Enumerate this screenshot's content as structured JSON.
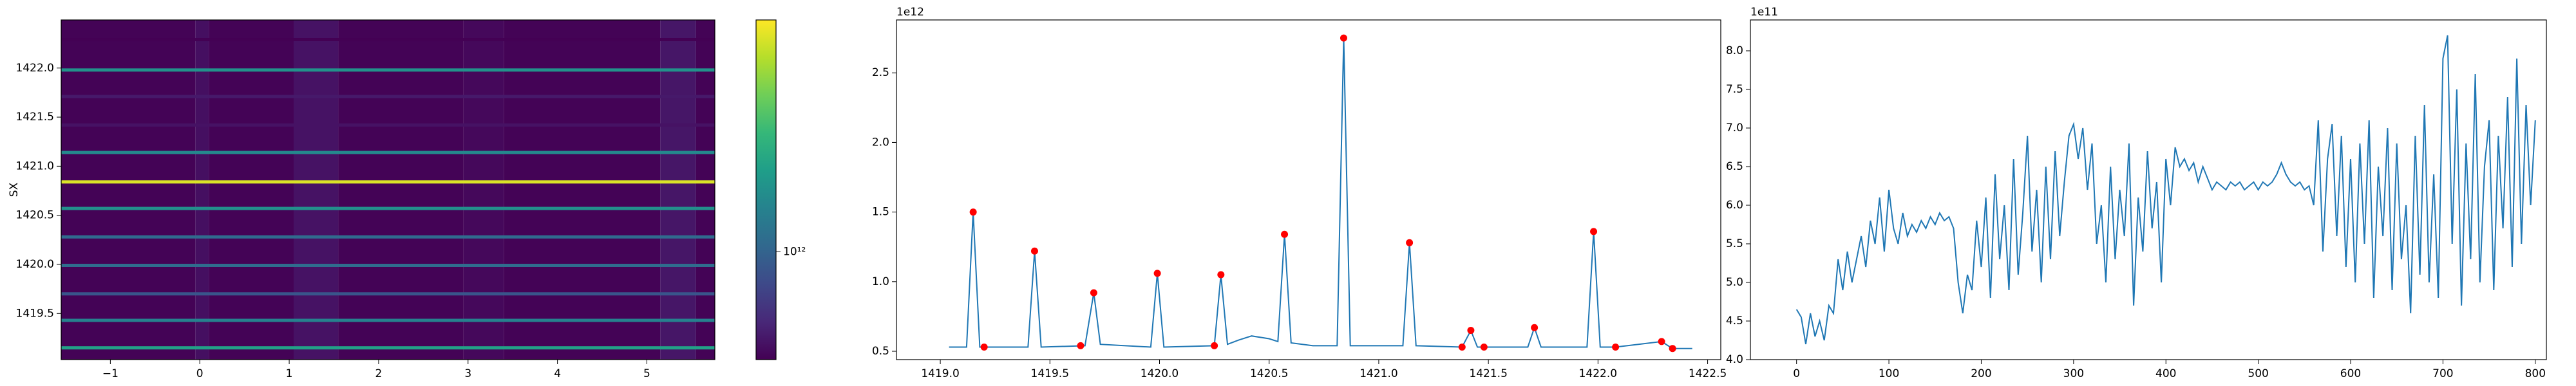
{
  "chart_data": [
    {
      "type": "heatmap",
      "ylabel": "SX",
      "xlim": [
        -1.55,
        5.76
      ],
      "xticks": [
        {
          "value": -1,
          "label": "−1"
        },
        0,
        1,
        2,
        3,
        4,
        5
      ],
      "ylim": [
        1419.03,
        1422.49
      ],
      "yticks": [
        1419.5,
        {
          "value": 1420,
          "label": "1420.0"
        },
        1420.5,
        {
          "value": 1421,
          "label": "1421.0"
        },
        1421.5,
        {
          "value": 1422,
          "label": "1422.0"
        }
      ],
      "colormap": "viridis",
      "log_scale": true,
      "clim": [
        600000000000.0,
        3000000000000.0
      ],
      "cticks": [
        {
          "value": 1000000000000.0,
          "label": "10¹²"
        }
      ],
      "column_edges": [
        -1.55,
        -0.05,
        0.1,
        1.05,
        1.55,
        2.95,
        3.4,
        5.15,
        5.55,
        5.76
      ],
      "column_values": [
        605000000000.0,
        640000000000.0,
        605000000000.0,
        650000000000.0,
        605000000000.0,
        620000000000.0,
        605000000000.0,
        660000000000.0,
        605000000000.0
      ],
      "row_y": [
        1419.15,
        1419.43,
        1419.7,
        1419.99,
        1420.28,
        1420.57,
        1420.84,
        1421.14,
        1421.42,
        1421.71,
        1421.98,
        1422.29
      ],
      "row_values": [
        1500000000000.0,
        1220000000000.0,
        920000000000.0,
        1060000000000.0,
        1050000000000.0,
        1340000000000.0,
        2750000000000.0,
        1280000000000.0,
        650000000000.0,
        670000000000.0,
        1360000000000.0,
        570000000000.0
      ]
    },
    {
      "type": "line",
      "offset_label": "1e12",
      "color": "#1f77b4",
      "x": [
        1419.04,
        1419.12,
        1419.15,
        1419.18,
        1419.4,
        1419.43,
        1419.46,
        1419.66,
        1419.7,
        1419.73,
        1419.96,
        1419.99,
        1420.02,
        1420.25,
        1420.28,
        1420.31,
        1420.36,
        1420.42,
        1420.5,
        1420.54,
        1420.57,
        1420.6,
        1420.7,
        1420.81,
        1420.84,
        1420.87,
        1421.11,
        1421.14,
        1421.17,
        1421.38,
        1421.42,
        1421.45,
        1421.48,
        1421.68,
        1421.71,
        1421.74,
        1421.95,
        1421.98,
        1422.01,
        1422.08,
        1422.29,
        1422.34,
        1422.43
      ],
      "values": [
        0.53,
        0.53,
        1.5,
        0.53,
        0.53,
        1.22,
        0.53,
        0.54,
        0.92,
        0.55,
        0.53,
        1.06,
        0.53,
        0.54,
        1.05,
        0.55,
        0.58,
        0.61,
        0.59,
        0.57,
        1.34,
        0.56,
        0.54,
        0.54,
        2.75,
        0.54,
        0.54,
        1.28,
        0.54,
        0.53,
        0.65,
        0.53,
        0.53,
        0.53,
        0.67,
        0.53,
        0.53,
        1.36,
        0.53,
        0.53,
        0.57,
        0.52,
        0.52
      ],
      "peaks": {
        "color": "red",
        "x": [
          1419.15,
          1419.2,
          1419.43,
          1419.64,
          1419.7,
          1419.99,
          1420.25,
          1420.28,
          1420.57,
          1420.84,
          1421.14,
          1421.38,
          1421.42,
          1421.48,
          1421.71,
          1421.98,
          1422.08,
          1422.29,
          1422.34
        ],
        "values": [
          1.5,
          0.53,
          1.22,
          0.54,
          0.92,
          1.06,
          0.54,
          1.05,
          1.34,
          2.75,
          1.28,
          0.53,
          0.65,
          0.53,
          0.67,
          1.36,
          0.53,
          0.57,
          0.52
        ]
      },
      "xlim": [
        1418.8,
        1422.56
      ],
      "xticks": [
        {
          "value": 1419,
          "label": "1419.0"
        },
        1419.5,
        {
          "value": 1420,
          "label": "1420.0"
        },
        1420.5,
        {
          "value": 1421,
          "label": "1421.0"
        },
        1421.5,
        {
          "value": 1422,
          "label": "1422.0"
        },
        1422.5
      ],
      "ylim": [
        0.44,
        2.88
      ],
      "yticks": [
        0.5,
        {
          "value": 1,
          "label": "1.0"
        },
        1.5,
        {
          "value": 2,
          "label": "2.0"
        },
        2.5
      ]
    },
    {
      "type": "line",
      "offset_label": "1e11",
      "color": "#1f77b4",
      "x": [
        0,
        5,
        10,
        15,
        20,
        25,
        30,
        35,
        40,
        45,
        50,
        55,
        60,
        65,
        70,
        75,
        80,
        85,
        90,
        95,
        100,
        105,
        110,
        115,
        120,
        125,
        130,
        135,
        140,
        145,
        150,
        155,
        160,
        165,
        170,
        175,
        180,
        185,
        190,
        195,
        200,
        205,
        210,
        215,
        220,
        225,
        230,
        235,
        240,
        245,
        250,
        255,
        260,
        265,
        270,
        275,
        280,
        285,
        290,
        295,
        300,
        305,
        310,
        315,
        320,
        325,
        330,
        335,
        340,
        345,
        350,
        355,
        360,
        365,
        370,
        375,
        380,
        385,
        390,
        395,
        400,
        405,
        410,
        415,
        420,
        425,
        430,
        435,
        440,
        445,
        450,
        455,
        460,
        465,
        470,
        475,
        480,
        485,
        490,
        495,
        500,
        505,
        510,
        515,
        520,
        525,
        530,
        535,
        540,
        545,
        550,
        555,
        560,
        565,
        570,
        575,
        580,
        585,
        590,
        595,
        600,
        605,
        610,
        615,
        620,
        625,
        630,
        635,
        640,
        645,
        650,
        655,
        660,
        665,
        670,
        675,
        680,
        685,
        690,
        695,
        700,
        705,
        710,
        715,
        720,
        725,
        730,
        735,
        740,
        745,
        750,
        755,
        760,
        765,
        770,
        775,
        780,
        785,
        790,
        795,
        800
      ],
      "values": [
        4.65,
        4.55,
        4.2,
        4.6,
        4.3,
        4.5,
        4.25,
        4.7,
        4.6,
        5.3,
        4.9,
        5.4,
        5.0,
        5.3,
        5.6,
        5.2,
        5.8,
        5.5,
        6.1,
        5.4,
        6.2,
        5.7,
        5.5,
        5.9,
        5.6,
        5.75,
        5.65,
        5.8,
        5.7,
        5.85,
        5.75,
        5.9,
        5.8,
        5.85,
        5.7,
        5.0,
        4.6,
        5.1,
        4.9,
        5.8,
        5.2,
        6.1,
        4.8,
        6.4,
        5.3,
        6.0,
        4.9,
        6.6,
        5.1,
        5.9,
        6.9,
        5.4,
        6.2,
        5.0,
        6.5,
        5.3,
        6.7,
        5.6,
        6.3,
        6.9,
        7.05,
        6.6,
        7.0,
        6.2,
        6.8,
        5.5,
        6.0,
        5.0,
        6.5,
        5.3,
        6.2,
        5.6,
        6.8,
        4.7,
        6.1,
        5.4,
        6.7,
        5.7,
        6.3,
        5.0,
        6.6,
        6.0,
        6.75,
        6.5,
        6.6,
        6.45,
        6.55,
        6.3,
        6.5,
        6.35,
        6.2,
        6.3,
        6.25,
        6.2,
        6.3,
        6.25,
        6.3,
        6.2,
        6.25,
        6.3,
        6.2,
        6.3,
        6.25,
        6.3,
        6.4,
        6.55,
        6.4,
        6.3,
        6.25,
        6.3,
        6.2,
        6.25,
        6.0,
        7.1,
        5.4,
        6.6,
        7.05,
        5.6,
        6.9,
        5.2,
        6.6,
        5.0,
        6.8,
        5.5,
        7.1,
        4.8,
        6.5,
        5.6,
        7.0,
        4.9,
        6.8,
        5.3,
        6.0,
        4.6,
        6.9,
        5.1,
        7.3,
        5.0,
        6.4,
        4.8,
        7.9,
        8.2,
        5.5,
        7.5,
        4.7,
        6.8,
        5.3,
        7.7,
        5.0,
        6.5,
        7.1,
        4.9,
        6.9,
        5.7,
        7.4,
        5.2,
        7.9,
        5.5,
        7.3,
        6.0,
        7.1
      ],
      "xlim": [
        -50,
        812
      ],
      "xticks": [
        0,
        100,
        200,
        300,
        400,
        500,
        600,
        700,
        800
      ],
      "ylim": [
        4.0,
        8.4
      ],
      "yticks": [
        {
          "value": 4,
          "label": "4.0"
        },
        4.5,
        {
          "value": 5,
          "label": "5.0"
        },
        5.5,
        {
          "value": 6,
          "label": "6.0"
        },
        6.5,
        {
          "value": 7,
          "label": "7.0"
        },
        7.5,
        {
          "value": 8,
          "label": "8.0"
        }
      ]
    }
  ]
}
